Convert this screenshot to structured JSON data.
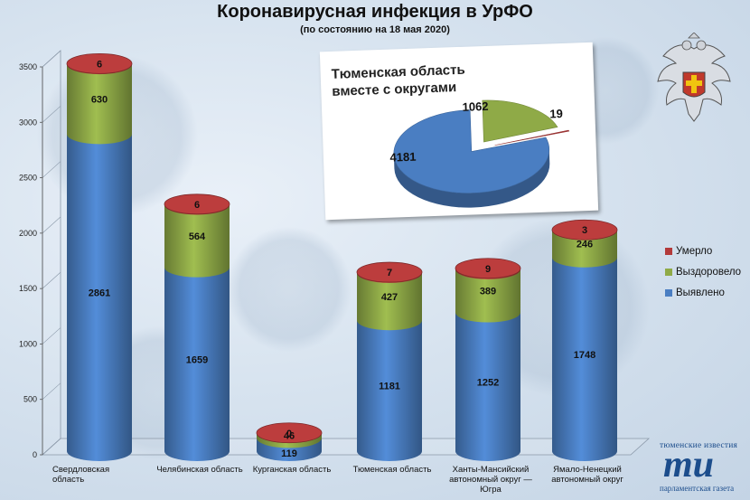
{
  "header": {
    "title": "Коронавирусная инфекция в УрФО",
    "subtitle": "(по состоянию на 18 мая 2020)"
  },
  "colors": {
    "detected": "#4a7ec2",
    "recovered": "#8faa47",
    "died": "#b33a3a"
  },
  "legend": {
    "died": "Умерло",
    "recovered": "Выздоровело",
    "detected": "Выявлено"
  },
  "inset": {
    "title_line1": "Тюменская область",
    "title_line2": "вместе с округами"
  },
  "logo": {
    "top_text": "тюменские известия",
    "mark": "ти",
    "bottom_text": "парламентская газета"
  },
  "emblem": {
    "icon": "eagle-emblem-icon"
  },
  "chart_data": [
    {
      "type": "bar",
      "stacked": true,
      "title": "Коронавирусная инфекция в УрФО",
      "subtitle": "(по состоянию на 18 мая 2020)",
      "categories": [
        [
          "Свердловская",
          "область"
        ],
        [
          "Челябинская область"
        ],
        [
          "Курганская область"
        ],
        [
          "Тюменская область"
        ],
        [
          "Ханты-Мансийский",
          "автономный округ —",
          "Югра"
        ],
        [
          "Ямало-Ненецкий",
          "автономный округ"
        ]
      ],
      "series": [
        {
          "name": "Выявлено",
          "values": [
            2861,
            1659,
            119,
            1181,
            1252,
            1748
          ]
        },
        {
          "name": "Выздоровело",
          "values": [
            630,
            564,
            46,
            427,
            389,
            246
          ]
        },
        {
          "name": "Умерло",
          "values": [
            6,
            6,
            0,
            7,
            9,
            3
          ]
        }
      ],
      "ylim": [
        0,
        3500
      ],
      "yticks": [
        0,
        500,
        1000,
        1500,
        2000,
        2500,
        3000,
        3500
      ],
      "legend_position": "right"
    },
    {
      "type": "pie",
      "title": "Тюменская область вместе с округами",
      "labels": [
        "Выявлено",
        "Выздоровело",
        "Умерло"
      ],
      "values": [
        4181,
        1062,
        19
      ]
    }
  ]
}
